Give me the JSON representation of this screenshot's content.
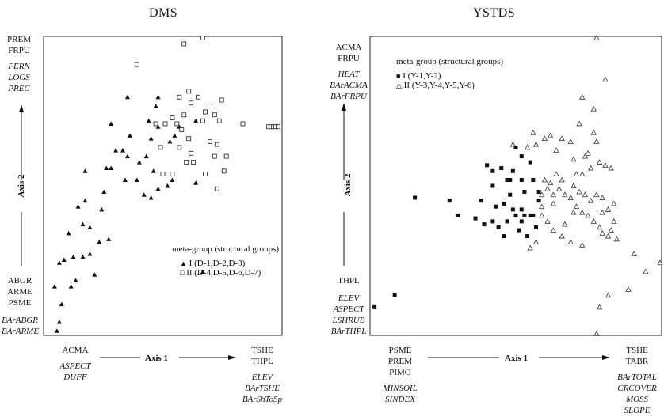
{
  "chart_data": [
    {
      "type": "scatter",
      "title": "DMS",
      "xlabel": "Axis 1",
      "ylabel": "Axis 2",
      "axis_y_top_labels": [
        "PREM",
        "FRPU"
      ],
      "axis_y_top_italic": [
        "FERN",
        "LOGS",
        "PREC"
      ],
      "axis_y_bottom_labels": [
        "ABGR",
        "ARME",
        "PSME"
      ],
      "axis_y_bottom_italic": [
        "BArABGR",
        "BArARME"
      ],
      "axis_x_left_labels": [
        "ACMA"
      ],
      "axis_x_left_italic": [
        "ASPECT",
        "DUFF"
      ],
      "axis_x_right_labels": [
        "TSHE",
        "THPL"
      ],
      "axis_x_right_italic": [
        "ELEV",
        "BArTSHE",
        "BArShToSp"
      ],
      "legend": {
        "title": "meta-group (structural groups)",
        "entries": [
          "I (D-1,D-2,D-3)",
          "II (D-4,D-5,D-6,D-7)"
        ]
      },
      "xlim": [
        0,
        100
      ],
      "ylim": [
        0,
        100
      ],
      "series": [
        {
          "marker": "filled-triangle",
          "points": [
            [
              5,
              1
            ],
            [
              6,
              4
            ],
            [
              7,
              10
            ],
            [
              4,
              16
            ],
            [
              11,
              16
            ],
            [
              13,
              18
            ],
            [
              6,
              24
            ],
            [
              8,
              25
            ],
            [
              12,
              26
            ],
            [
              16,
              26
            ],
            [
              19,
              27
            ],
            [
              21,
              20
            ],
            [
              23,
              31
            ],
            [
              27,
              32
            ],
            [
              10,
              34
            ],
            [
              19,
              36
            ],
            [
              16,
              37
            ],
            [
              14,
              43
            ],
            [
              17,
              45
            ],
            [
              24,
              42
            ],
            [
              25,
              48
            ],
            [
              17,
              55
            ],
            [
              28,
              56
            ],
            [
              26,
              56
            ],
            [
              30,
              62
            ],
            [
              33,
              62
            ],
            [
              35,
              60
            ],
            [
              40,
              58
            ],
            [
              43,
              60
            ],
            [
              34,
              52
            ],
            [
              39,
              52
            ],
            [
              46,
              55
            ],
            [
              42,
              47
            ],
            [
              45,
              46
            ],
            [
              48,
              49
            ],
            [
              52,
              50
            ],
            [
              54,
              52
            ],
            [
              53,
              65
            ],
            [
              55,
              67
            ],
            [
              57,
              70
            ],
            [
              35,
              80
            ],
            [
              44,
              72
            ],
            [
              48,
              70
            ],
            [
              45,
              66
            ],
            [
              28,
              71
            ],
            [
              47,
              77
            ],
            [
              36,
              67
            ],
            [
              64,
              51
            ],
            [
              67,
              21
            ],
            [
              48,
              80
            ],
            [
              64,
              72
            ]
          ]
        },
        {
          "marker": "open-square",
          "points": [
            [
              39,
              91
            ],
            [
              59,
              98
            ],
            [
              67,
              101
            ],
            [
              61,
              82
            ],
            [
              65,
              80
            ],
            [
              57,
              80
            ],
            [
              62,
              78
            ],
            [
              70,
              77
            ],
            [
              68,
              75
            ],
            [
              72,
              74
            ],
            [
              67,
              72
            ],
            [
              74,
              72
            ],
            [
              75,
              79
            ],
            [
              47,
              71
            ],
            [
              51,
              71
            ],
            [
              56,
              71
            ],
            [
              59,
              74
            ],
            [
              54,
              73
            ],
            [
              58,
              69
            ],
            [
              61,
              66
            ],
            [
              62,
              61
            ],
            [
              57,
              63
            ],
            [
              49,
              63
            ],
            [
              60,
              58
            ],
            [
              63,
              58
            ],
            [
              70,
              65
            ],
            [
              73,
              64
            ],
            [
              72,
              60
            ],
            [
              73,
              49
            ],
            [
              76,
              55
            ],
            [
              68,
              54
            ],
            [
              50,
              54
            ],
            [
              54,
              54
            ],
            [
              84,
              71
            ],
            [
              77,
              60
            ],
            [
              95,
              70
            ],
            [
              96,
              70
            ],
            [
              97,
              70
            ],
            [
              98,
              70
            ],
            [
              99,
              70
            ]
          ]
        }
      ]
    },
    {
      "type": "scatter",
      "title": "YSTDS",
      "xlabel": "Axis 1",
      "ylabel": "Axis 2",
      "axis_y_top_labels": [
        "ACMA",
        "FRPU"
      ],
      "axis_y_top_italic": [
        "HEAT",
        "BArACMA",
        "BArFRPU"
      ],
      "axis_y_bottom_labels": [
        "THPL"
      ],
      "axis_y_bottom_italic": [
        "ELEV",
        "ASPECT",
        "LSHRUB",
        "BArTHPL"
      ],
      "axis_x_left_labels": [
        "PSME",
        "PREM",
        "PIMO"
      ],
      "axis_x_left_italic": [
        "MINSOIL",
        "SINDEX"
      ],
      "axis_x_right_labels": [
        "TSHE",
        "TABR"
      ],
      "axis_x_right_italic": [
        "BArTOTAL",
        "CRCOVER",
        "MOSS",
        "SLOPE"
      ],
      "legend": {
        "title": "meta-group (structural groups)",
        "entries": [
          "I (Y-1,Y-2)",
          "II (Y-3,Y-4,Y-5,Y-6)"
        ]
      },
      "xlim": [
        0,
        100
      ],
      "ylim": [
        0,
        100
      ],
      "series": [
        {
          "marker": "filled-square",
          "points": [
            [
              1,
              9
            ],
            [
              8,
              13
            ],
            [
              15,
              46
            ],
            [
              27,
              45
            ],
            [
              30,
              40
            ],
            [
              36,
              39
            ],
            [
              38,
              45
            ],
            [
              39,
              37
            ],
            [
              42,
              38
            ],
            [
              44,
              36
            ],
            [
              46,
              44
            ],
            [
              43,
              43
            ],
            [
              48,
              47
            ],
            [
              46,
              33
            ],
            [
              42,
              50
            ],
            [
              42,
              55
            ],
            [
              45,
              56
            ],
            [
              47,
              52
            ],
            [
              48,
              52
            ],
            [
              40,
              57
            ],
            [
              49,
              55
            ],
            [
              50,
              63
            ],
            [
              52,
              60
            ],
            [
              55,
              58
            ],
            [
              52,
              52
            ],
            [
              56,
              52
            ],
            [
              53,
              48
            ],
            [
              52,
              42
            ],
            [
              55,
              40
            ],
            [
              58,
              45
            ],
            [
              58,
              48
            ],
            [
              52,
              38
            ],
            [
              54,
              33
            ],
            [
              49,
              42
            ],
            [
              50,
              40
            ],
            [
              51,
              35
            ],
            [
              56,
              40
            ],
            [
              57,
              36
            ],
            [
              53,
              40
            ],
            [
              47,
              38
            ]
          ]
        },
        {
          "marker": "open-triangle",
          "points": [
            [
              78,
              101
            ],
            [
              81,
              86
            ],
            [
              73,
              80
            ],
            [
              77,
              76
            ],
            [
              72,
              71
            ],
            [
              49,
              64
            ],
            [
              54,
              63
            ],
            [
              56,
              68
            ],
            [
              57,
              64
            ],
            [
              60,
              66
            ],
            [
              62,
              67
            ],
            [
              64,
              62
            ],
            [
              66,
              66
            ],
            [
              69,
              65
            ],
            [
              70,
              59
            ],
            [
              74,
              60
            ],
            [
              75,
              61
            ],
            [
              77,
              68
            ],
            [
              78,
              65
            ],
            [
              73,
              54
            ],
            [
              76,
              56
            ],
            [
              79,
              58
            ],
            [
              81,
              57
            ],
            [
              83,
              56
            ],
            [
              71,
              54
            ],
            [
              66,
              52
            ],
            [
              64,
              54
            ],
            [
              62,
              51
            ],
            [
              60,
              52
            ],
            [
              59,
              47
            ],
            [
              61,
              49
            ],
            [
              63,
              47
            ],
            [
              65,
              49
            ],
            [
              67,
              47
            ],
            [
              69,
              46
            ],
            [
              70,
              50
            ],
            [
              72,
              48
            ],
            [
              74,
              47
            ],
            [
              76,
              45
            ],
            [
              78,
              47
            ],
            [
              80,
              46
            ],
            [
              82,
              42
            ],
            [
              84,
              44
            ],
            [
              71,
              43
            ],
            [
              73,
              41
            ],
            [
              75,
              40
            ],
            [
              77,
              38
            ],
            [
              79,
              36
            ],
            [
              80,
              34
            ],
            [
              82,
              33
            ],
            [
              83,
              35
            ],
            [
              85,
              32
            ],
            [
              73,
              30
            ],
            [
              69,
              31
            ],
            [
              66,
              33
            ],
            [
              63,
              35
            ],
            [
              61,
              38
            ],
            [
              59,
              40
            ],
            [
              57,
              31
            ],
            [
              55,
              29
            ],
            [
              67,
              37
            ],
            [
              80,
              41
            ],
            [
              84,
              38
            ],
            [
              91,
              27
            ],
            [
              95,
              21
            ],
            [
              100,
              24
            ],
            [
              79,
              9
            ],
            [
              82,
              13
            ],
            [
              89,
              15
            ],
            [
              78,
              0
            ],
            [
              59,
              43
            ],
            [
              70,
              41
            ],
            [
              63,
              44
            ]
          ]
        }
      ]
    }
  ]
}
